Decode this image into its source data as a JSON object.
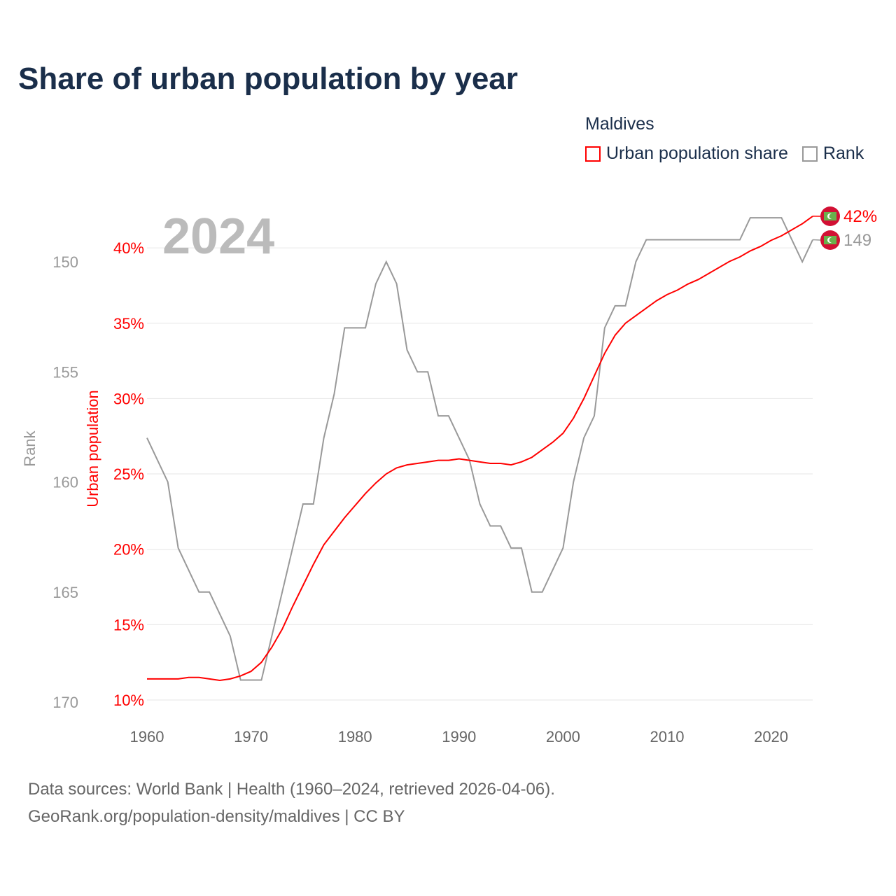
{
  "title": "Share of urban population by year",
  "legend": {
    "title": "Maldives",
    "items": [
      {
        "label": "Urban population share",
        "color": "#ff0000"
      },
      {
        "label": "Rank",
        "color": "#999999"
      }
    ]
  },
  "footer": {
    "line1": "Data sources: World Bank | Health (1960–2024, retrieved 2026-04-06).",
    "line2": "GeoRank.org/population-density/maldives | CC BY"
  },
  "chart_data": {
    "type": "line",
    "year_label": "2024",
    "x": [
      1960,
      1961,
      1962,
      1963,
      1964,
      1965,
      1966,
      1967,
      1968,
      1969,
      1970,
      1971,
      1972,
      1973,
      1974,
      1975,
      1976,
      1977,
      1978,
      1979,
      1980,
      1981,
      1982,
      1983,
      1984,
      1985,
      1986,
      1987,
      1988,
      1989,
      1990,
      1991,
      1992,
      1993,
      1994,
      1995,
      1996,
      1997,
      1998,
      1999,
      2000,
      2001,
      2002,
      2003,
      2004,
      2005,
      2006,
      2007,
      2008,
      2009,
      2010,
      2011,
      2012,
      2013,
      2014,
      2015,
      2016,
      2017,
      2018,
      2019,
      2020,
      2021,
      2022,
      2023,
      2024
    ],
    "xlim": [
      1960,
      2024
    ],
    "xticks": [
      "1960",
      "1970",
      "1980",
      "1990",
      "2000",
      "2010",
      "2020"
    ],
    "series": [
      {
        "name": "Urban population share",
        "axis": "left",
        "color": "#ff0000",
        "values": [
          11.4,
          11.4,
          11.4,
          11.4,
          11.5,
          11.5,
          11.4,
          11.3,
          11.4,
          11.6,
          11.9,
          12.5,
          13.5,
          14.7,
          16.2,
          17.6,
          19.0,
          20.3,
          21.2,
          22.1,
          22.9,
          23.7,
          24.4,
          25.0,
          25.4,
          25.6,
          25.7,
          25.8,
          25.9,
          25.9,
          26.0,
          25.9,
          25.8,
          25.7,
          25.7,
          25.6,
          25.8,
          26.1,
          26.6,
          27.1,
          27.7,
          28.7,
          30.0,
          31.5,
          33.0,
          34.2,
          35.0,
          35.5,
          36.0,
          36.5,
          36.9,
          37.2,
          37.6,
          37.9,
          38.3,
          38.7,
          39.1,
          39.4,
          39.8,
          40.1,
          40.5,
          40.8,
          41.2,
          41.6,
          42.1
        ],
        "end_label": "42%"
      },
      {
        "name": "Rank",
        "axis": "right-inverted",
        "color": "#999999",
        "values": [
          158,
          159,
          160,
          163,
          164,
          165,
          165,
          166,
          167,
          169,
          169,
          169,
          167,
          165,
          163,
          161,
          161,
          158,
          156,
          153,
          153,
          153,
          151,
          150,
          151,
          154,
          155,
          155,
          157,
          157,
          158,
          159,
          161,
          162,
          162,
          163,
          163,
          165,
          165,
          164,
          163,
          160,
          158,
          157,
          153,
          152,
          152,
          150,
          149,
          149,
          149,
          149,
          149,
          149,
          149,
          149,
          149,
          149,
          148,
          148,
          148,
          148,
          149,
          150,
          149
        ],
        "end_label": "149"
      }
    ],
    "left_axis": {
      "label": "Urban population",
      "ylim": [
        10,
        42
      ],
      "ticks": [
        "10%",
        "15%",
        "20%",
        "25%",
        "30%",
        "35%",
        "40%"
      ]
    },
    "right_axis": {
      "label": "Rank",
      "ylim": [
        170,
        149
      ],
      "ticks": [
        "150",
        "155",
        "160",
        "165",
        "170"
      ]
    },
    "grid": true
  }
}
